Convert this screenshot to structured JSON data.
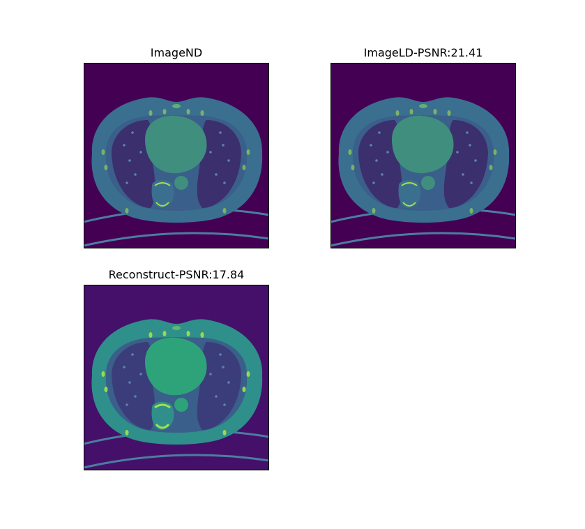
{
  "figure": {
    "panels": [
      {
        "title": "ImageND",
        "variant": "nd"
      },
      {
        "title": "ImageLD-PSNR:21.41",
        "variant": "ld"
      },
      {
        "title": "Reconstruct-PSNR:17.84",
        "variant": "rec"
      }
    ]
  },
  "colors": {
    "background_dark": "#440154",
    "tissue": "#3b6f8f",
    "tissue_rec": "#2f8f8a",
    "heart": "#3f8e7e",
    "heart_rec": "#2ea37a",
    "lung": "#3c2f6e",
    "bone": "#a7e04a",
    "frame": "#000000"
  }
}
